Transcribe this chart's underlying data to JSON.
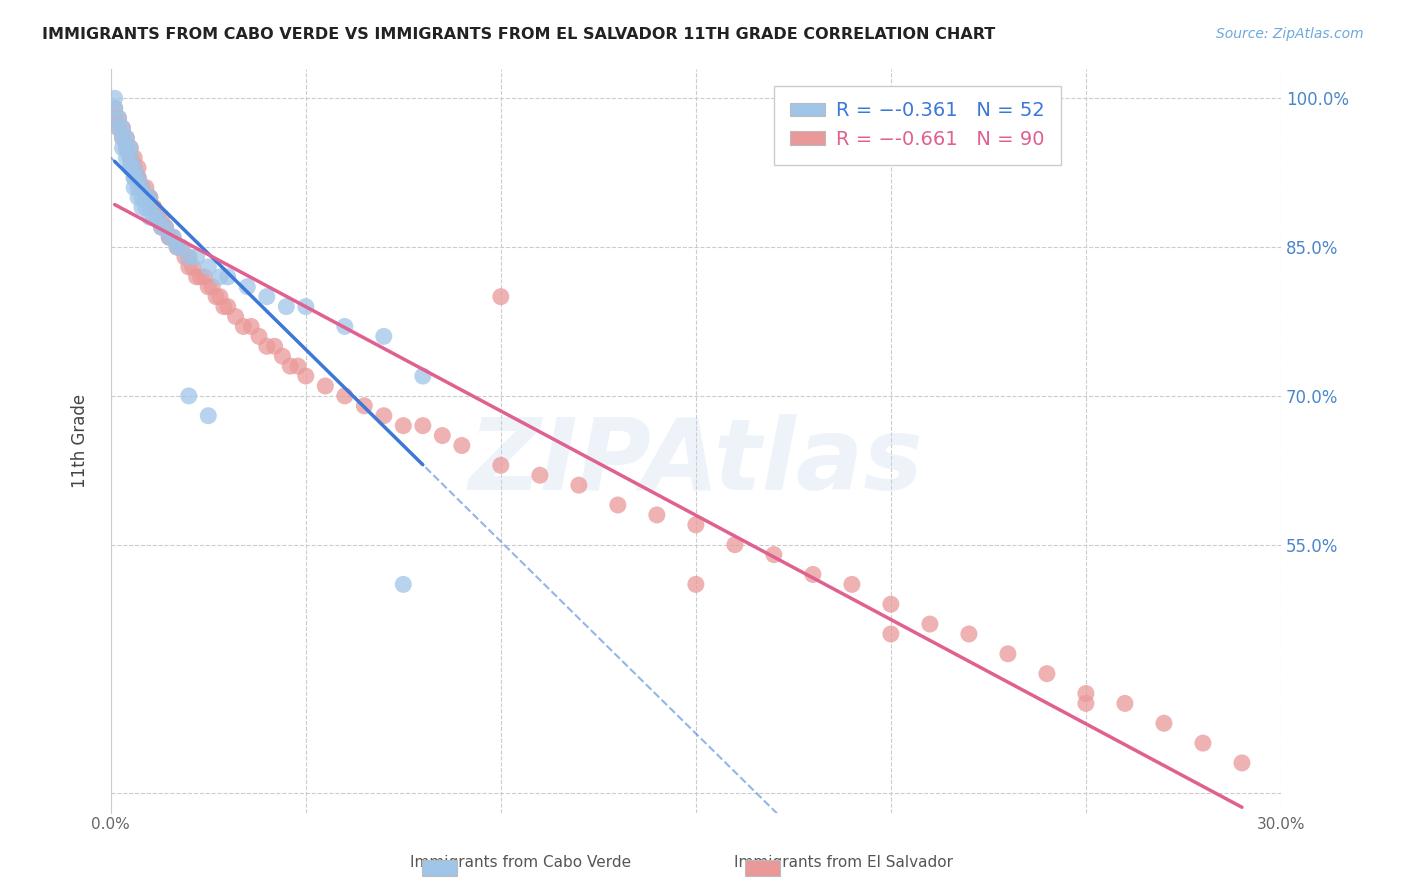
{
  "title": "IMMIGRANTS FROM CABO VERDE VS IMMIGRANTS FROM EL SALVADOR 11TH GRADE CORRELATION CHART",
  "source": "Source: ZipAtlas.com",
  "ylabel": "11th Grade",
  "watermark": "ZIPAtlas",
  "xlim": [
    0.0,
    0.3
  ],
  "ylim": [
    0.28,
    1.03
  ],
  "xticks": [
    0.0,
    0.05,
    0.1,
    0.15,
    0.2,
    0.25,
    0.3
  ],
  "xtick_labels": [
    "0.0%",
    "",
    "",
    "",
    "",
    "",
    "30.0%"
  ],
  "ytick_positions": [
    0.3,
    0.55,
    0.7,
    0.85,
    1.0
  ],
  "right_ytick_positions": [
    1.0,
    0.85,
    0.7,
    0.55
  ],
  "right_ytick_labels": [
    "100.0%",
    "85.0%",
    "70.0%",
    "55.0%"
  ],
  "legend_R1": "-0.361",
  "legend_N1": "52",
  "legend_R2": "-0.661",
  "legend_N2": "90",
  "color_cabo": "#9fc5e8",
  "color_salvador": "#ea9999",
  "color_line_cabo": "#3c78d8",
  "color_line_salvador": "#e06090",
  "color_title": "#222222",
  "color_source": "#6fa8dc",
  "color_right_yticks": "#4a86c8",
  "cabo_verde_x": [
    0.001,
    0.001,
    0.002,
    0.002,
    0.003,
    0.003,
    0.003,
    0.004,
    0.004,
    0.004,
    0.005,
    0.005,
    0.005,
    0.005,
    0.006,
    0.006,
    0.006,
    0.006,
    0.007,
    0.007,
    0.007,
    0.008,
    0.008,
    0.008,
    0.009,
    0.009,
    0.01,
    0.01,
    0.01,
    0.011,
    0.012,
    0.013,
    0.014,
    0.015,
    0.016,
    0.017,
    0.018,
    0.02,
    0.022,
    0.025,
    0.028,
    0.03,
    0.035,
    0.04,
    0.045,
    0.05,
    0.06,
    0.07,
    0.075,
    0.08,
    0.02,
    0.025
  ],
  "cabo_verde_y": [
    1.0,
    0.99,
    0.98,
    0.97,
    0.97,
    0.96,
    0.95,
    0.96,
    0.95,
    0.94,
    0.95,
    0.94,
    0.93,
    0.93,
    0.93,
    0.92,
    0.92,
    0.91,
    0.92,
    0.91,
    0.9,
    0.91,
    0.9,
    0.89,
    0.9,
    0.89,
    0.9,
    0.89,
    0.88,
    0.88,
    0.88,
    0.87,
    0.87,
    0.86,
    0.86,
    0.85,
    0.85,
    0.84,
    0.84,
    0.83,
    0.82,
    0.82,
    0.81,
    0.8,
    0.79,
    0.79,
    0.77,
    0.76,
    0.51,
    0.72,
    0.7,
    0.68
  ],
  "el_salvador_x": [
    0.001,
    0.001,
    0.002,
    0.002,
    0.003,
    0.003,
    0.004,
    0.004,
    0.005,
    0.005,
    0.005,
    0.006,
    0.006,
    0.007,
    0.007,
    0.007,
    0.008,
    0.008,
    0.009,
    0.009,
    0.01,
    0.01,
    0.011,
    0.011,
    0.012,
    0.012,
    0.013,
    0.013,
    0.014,
    0.014,
    0.015,
    0.015,
    0.016,
    0.017,
    0.018,
    0.019,
    0.02,
    0.02,
    0.021,
    0.022,
    0.023,
    0.024,
    0.025,
    0.026,
    0.027,
    0.028,
    0.029,
    0.03,
    0.032,
    0.034,
    0.036,
    0.038,
    0.04,
    0.042,
    0.044,
    0.046,
    0.048,
    0.05,
    0.055,
    0.06,
    0.065,
    0.07,
    0.075,
    0.08,
    0.085,
    0.09,
    0.1,
    0.11,
    0.12,
    0.13,
    0.14,
    0.15,
    0.16,
    0.17,
    0.18,
    0.19,
    0.2,
    0.21,
    0.22,
    0.23,
    0.24,
    0.25,
    0.26,
    0.27,
    0.28,
    0.29,
    0.1,
    0.15,
    0.2,
    0.25
  ],
  "el_salvador_y": [
    0.99,
    0.98,
    0.98,
    0.97,
    0.97,
    0.96,
    0.96,
    0.95,
    0.95,
    0.94,
    0.94,
    0.94,
    0.93,
    0.93,
    0.92,
    0.92,
    0.91,
    0.91,
    0.91,
    0.9,
    0.9,
    0.9,
    0.89,
    0.89,
    0.88,
    0.88,
    0.88,
    0.87,
    0.87,
    0.87,
    0.86,
    0.86,
    0.86,
    0.85,
    0.85,
    0.84,
    0.84,
    0.83,
    0.83,
    0.82,
    0.82,
    0.82,
    0.81,
    0.81,
    0.8,
    0.8,
    0.79,
    0.79,
    0.78,
    0.77,
    0.77,
    0.76,
    0.75,
    0.75,
    0.74,
    0.73,
    0.73,
    0.72,
    0.71,
    0.7,
    0.69,
    0.68,
    0.67,
    0.67,
    0.66,
    0.65,
    0.63,
    0.62,
    0.61,
    0.59,
    0.58,
    0.57,
    0.55,
    0.54,
    0.52,
    0.51,
    0.49,
    0.47,
    0.46,
    0.44,
    0.42,
    0.4,
    0.39,
    0.37,
    0.35,
    0.33,
    0.8,
    0.51,
    0.46,
    0.39
  ],
  "grid_color": "#cccccc",
  "background_color": "#ffffff"
}
